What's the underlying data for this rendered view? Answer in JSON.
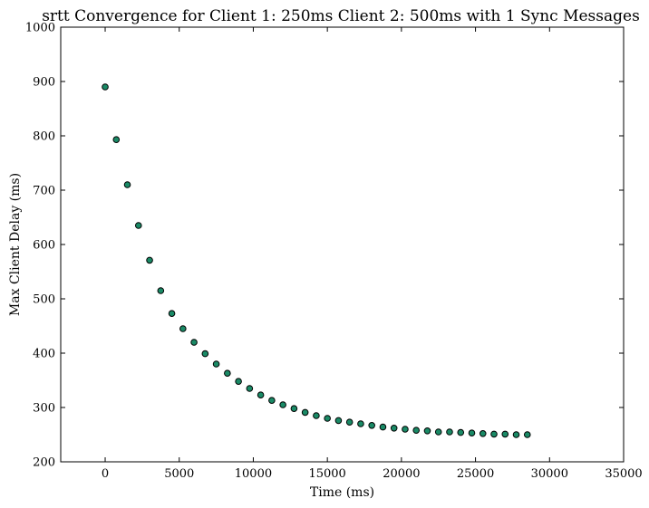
{
  "chart_data": {
    "type": "scatter",
    "title": "srtt Convergence for Client 1: 250ms Client 2: 500ms with 1 Sync Messages",
    "xlabel": "Time (ms)",
    "ylabel": "Max Client Delay (ms)",
    "xlim": [
      -3000,
      35000
    ],
    "ylim": [
      200,
      1000
    ],
    "xticks": [
      0,
      5000,
      10000,
      15000,
      20000,
      25000,
      30000,
      35000
    ],
    "yticks": [
      200,
      300,
      400,
      500,
      600,
      700,
      800,
      900,
      1000
    ],
    "xtick_labels": [
      "0",
      "5000",
      "10000",
      "15000",
      "20000",
      "25000",
      "30000",
      "35000"
    ],
    "ytick_labels": [
      "200",
      "300",
      "400",
      "500",
      "600",
      "700",
      "800",
      "900",
      "1000"
    ],
    "grid": false,
    "marker_color": "#1a8a66",
    "marker_edge_color": "#000000",
    "series": [
      {
        "x": [
          0,
          750,
          1500,
          2250,
          3000,
          3750,
          4500,
          5250,
          6000,
          6750,
          7500,
          8250,
          9000,
          9750,
          10500,
          11250,
          12000,
          12750,
          13500,
          14250,
          15000,
          15750,
          16500,
          17250,
          18000,
          18750,
          19500,
          20250,
          21000,
          21750,
          22500,
          23250,
          24000,
          24750,
          25500,
          26250,
          27000,
          27750,
          28500
        ],
        "y": [
          890,
          793,
          710,
          635,
          571,
          515,
          473,
          445,
          420,
          399,
          380,
          363,
          348,
          335,
          323,
          313,
          305,
          298,
          291,
          285,
          280,
          276,
          273,
          270,
          267,
          264,
          262,
          260,
          258,
          257,
          255,
          255,
          254,
          253,
          252,
          251,
          251,
          250,
          250
        ]
      }
    ]
  }
}
